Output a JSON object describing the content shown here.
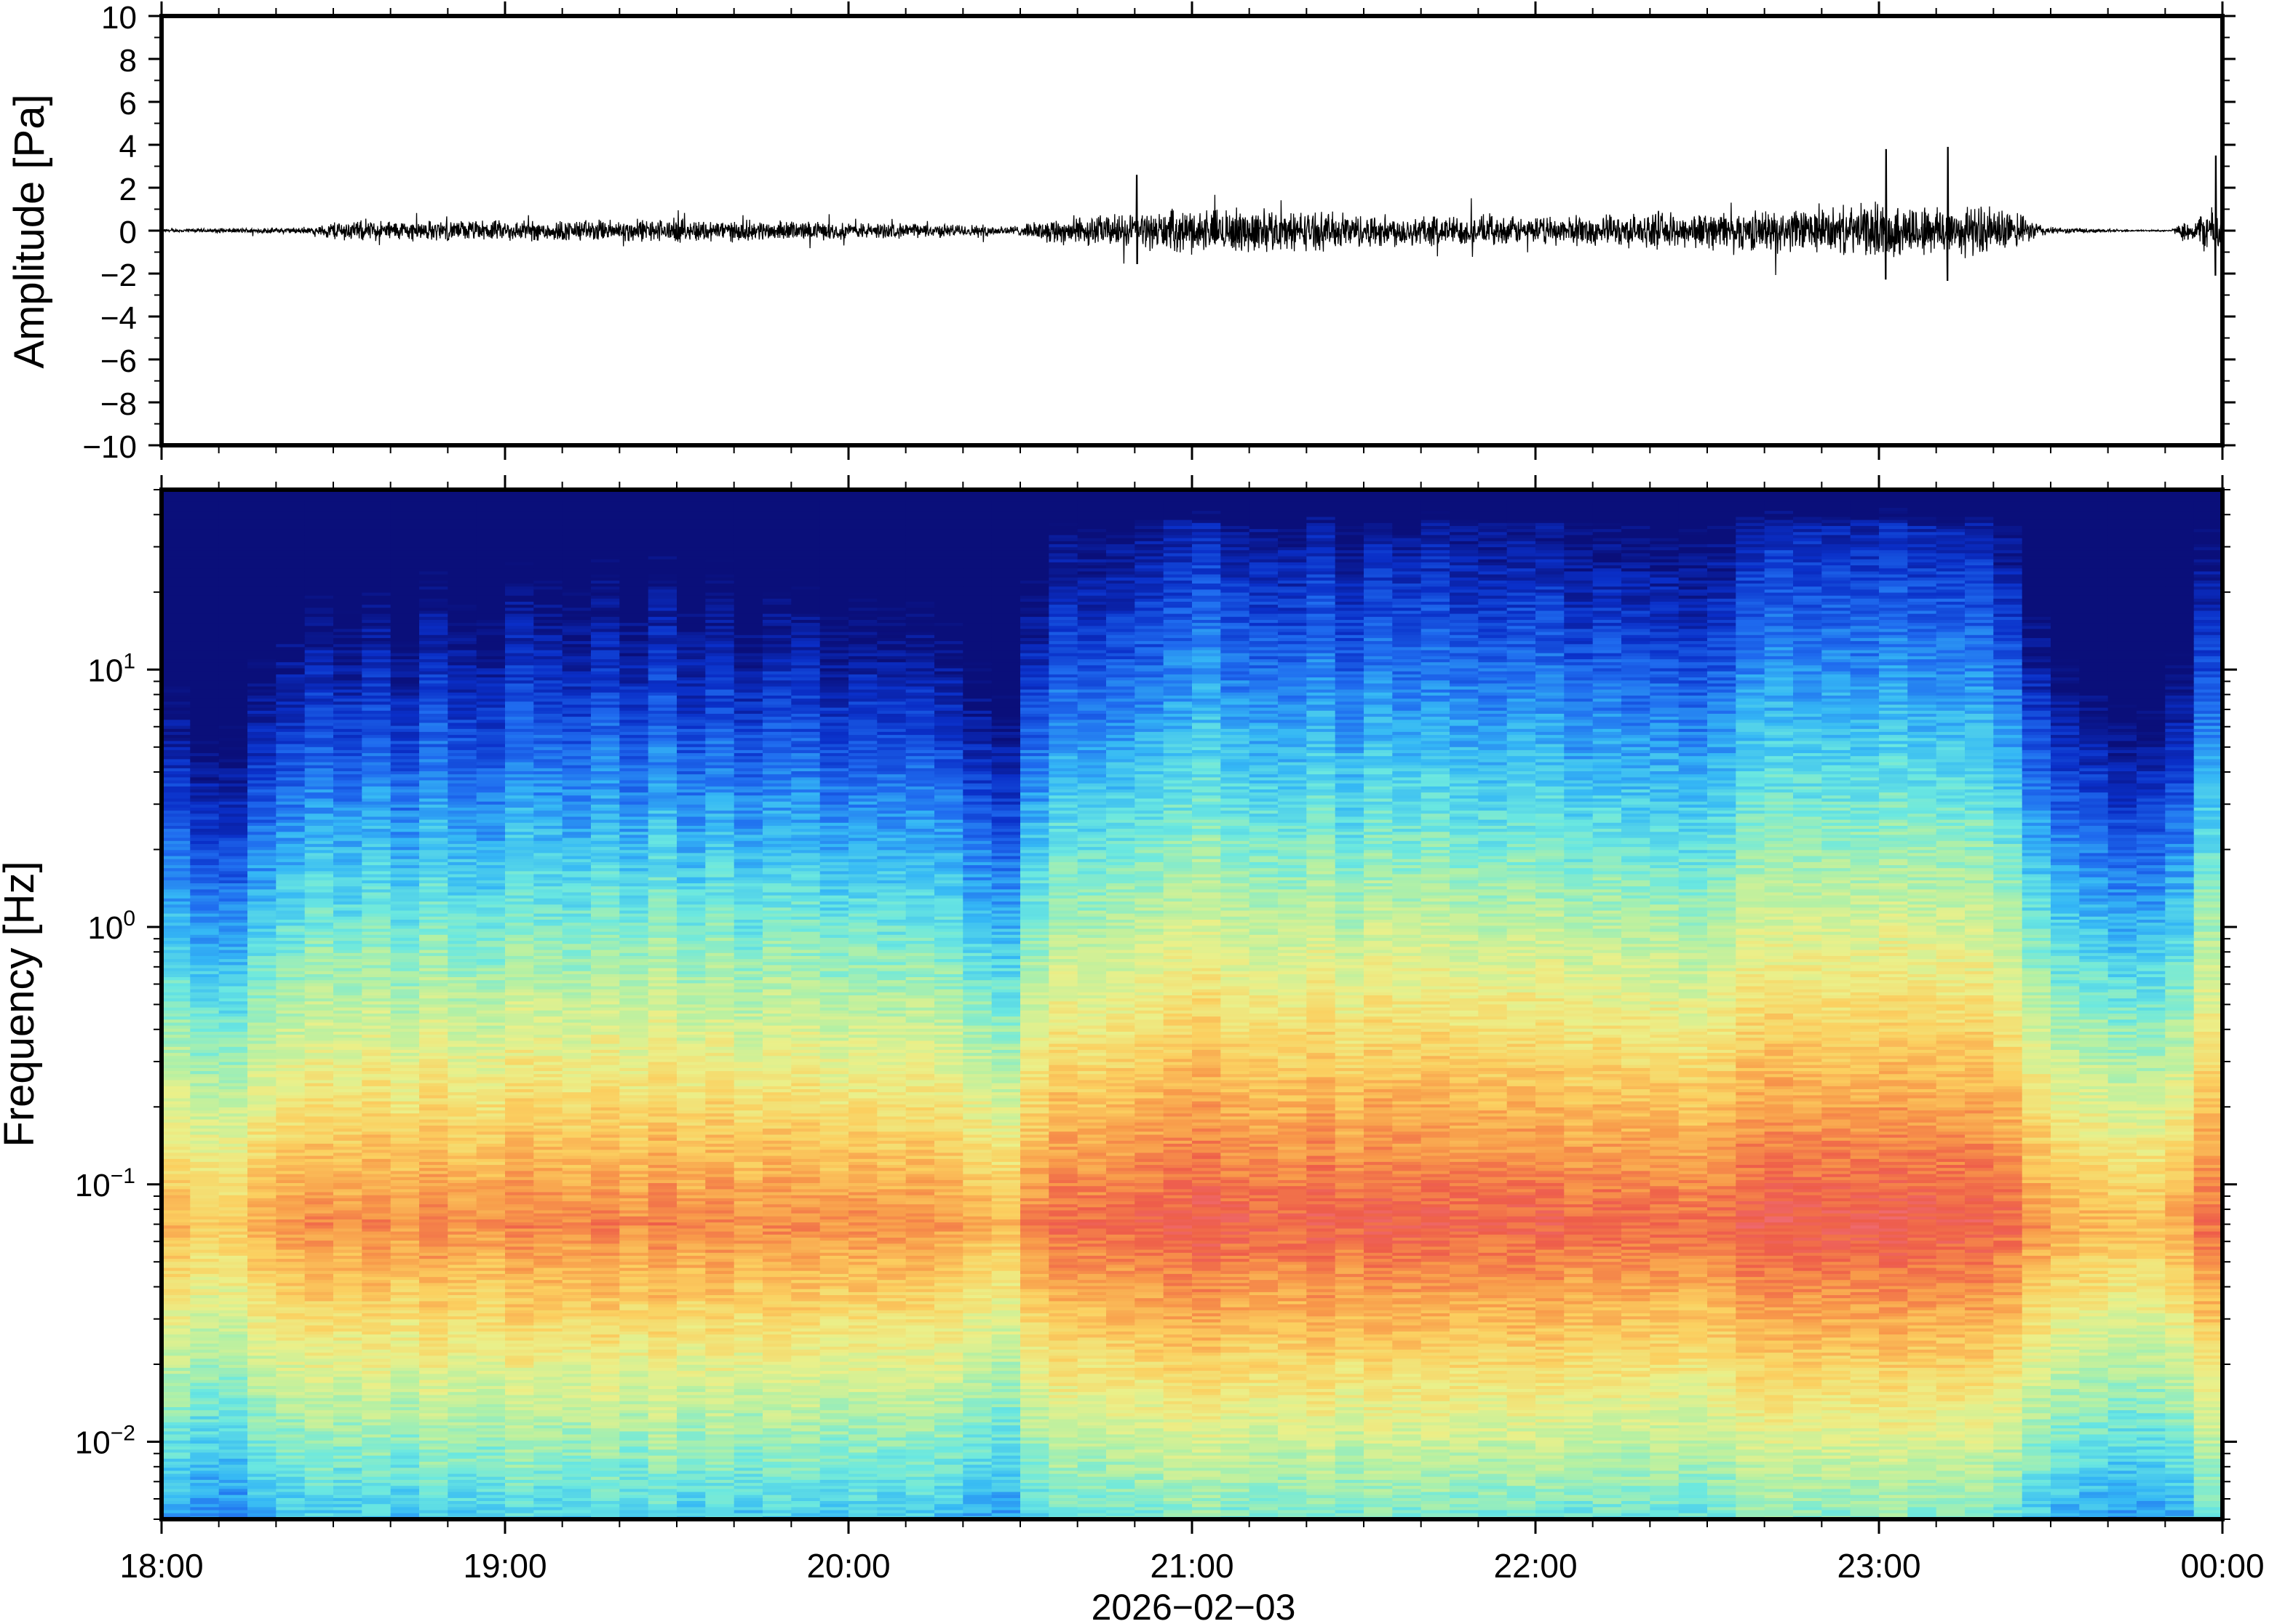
{
  "chart_data": [
    {
      "type": "line",
      "ylabel": "Amplitude [Pa]",
      "ylim": [
        -10,
        10
      ],
      "yticks": [
        10,
        8,
        6,
        4,
        2,
        0,
        -2,
        -4,
        -6,
        -8,
        -10
      ],
      "ytick_labels": [
        "10",
        "8",
        "6",
        "4",
        "2",
        "0",
        "−2",
        "−4",
        "−6",
        "−8",
        "−10"
      ],
      "x_range": [
        "18:00",
        "00:00"
      ],
      "trace_color": "#000000",
      "envelope": {
        "time_h": [
          0.0,
          0.45,
          0.5,
          1.0,
          1.5,
          2.0,
          2.4,
          2.5,
          2.6,
          2.8,
          3.0,
          3.2,
          3.5,
          4.0,
          4.5,
          4.9,
          5.0,
          5.2,
          5.35,
          5.5,
          5.75,
          5.85,
          5.95,
          6.0
        ],
        "amplitude_pa": [
          0.1,
          0.2,
          0.6,
          0.6,
          0.7,
          0.5,
          0.35,
          0.3,
          0.8,
          1.0,
          1.3,
          1.3,
          1.0,
          0.8,
          1.1,
          1.4,
          1.6,
          1.6,
          1.4,
          0.2,
          0.05,
          0.05,
          1.2,
          1.6
        ]
      },
      "peaks": [
        {
          "time_h": 2.84,
          "value_pa": 2.6
        },
        {
          "time_h": 5.02,
          "value_pa": 3.8
        },
        {
          "time_h": 5.2,
          "value_pa": 3.9
        },
        {
          "time_h": 5.98,
          "value_pa": 3.5
        }
      ]
    },
    {
      "type": "heatmap",
      "ylabel": "Frequency [Hz]",
      "xlabel": "2026−02−03",
      "y_scale": "log",
      "ylim": [
        0.005,
        50
      ],
      "yticks": [
        10,
        1,
        0.1,
        0.01
      ],
      "ytick_labels": [
        {
          "base": "10",
          "exp": "1"
        },
        {
          "base": "10",
          "exp": "0"
        },
        {
          "base": "10",
          "exp": "−1"
        },
        {
          "base": "10",
          "exp": "−2"
        }
      ],
      "x_tick_labels": [
        "18:00",
        "19:00",
        "20:00",
        "21:00",
        "22:00",
        "23:00",
        "00:00"
      ],
      "colormap": [
        "#0a0f7a",
        "#0a2fc8",
        "#1f6bef",
        "#35b8f5",
        "#6be8e0",
        "#b4f0a4",
        "#eaf08a",
        "#fbd060",
        "#f89a4a",
        "#ee5d4a",
        "#ef6f7e"
      ],
      "time_columns": 72,
      "energy_by_time": {
        "time_h": [
          0.0,
          0.1,
          0.2,
          0.3,
          0.5,
          1.0,
          1.5,
          2.0,
          2.3,
          2.45,
          2.6,
          2.9,
          3.2,
          3.5,
          4.0,
          4.5,
          4.6,
          5.0,
          5.3,
          5.45,
          5.55,
          5.75,
          5.85,
          5.95,
          6.0
        ],
        "energy": [
          0.35,
          0.3,
          0.25,
          0.45,
          0.55,
          0.6,
          0.62,
          0.55,
          0.5,
          0.35,
          0.7,
          0.85,
          0.85,
          0.8,
          0.75,
          0.72,
          0.85,
          0.9,
          0.85,
          0.6,
          0.4,
          0.25,
          0.35,
          0.75,
          0.8
        ]
      }
    }
  ]
}
